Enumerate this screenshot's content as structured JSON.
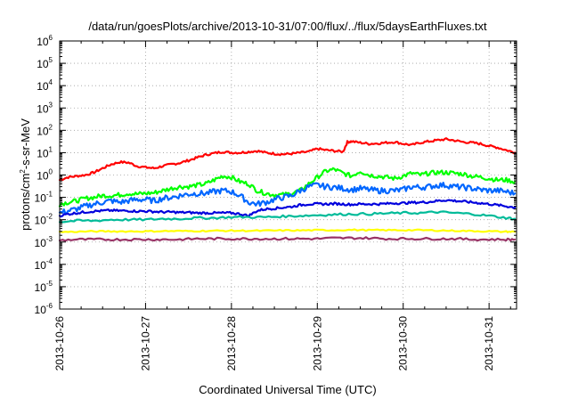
{
  "chart_data": {
    "type": "line",
    "title": "/data/run/goesPlots/archive/2013-10-31/07:00/flux/../flux/5daysEarthFluxes.txt",
    "xlabel": "Coordinated Universal Time (UTC)",
    "ylabel": {
      "base": "protons/cm",
      "sup": "2",
      "rest": "-s-sr-MeV"
    },
    "yscale": "log",
    "ylim": [
      1e-06,
      1000000.0
    ],
    "xlim": [
      0,
      5.32
    ],
    "grid": true,
    "legend": "none",
    "x_ticks": [
      {
        "value": 0,
        "label": "2013-10-26"
      },
      {
        "value": 1,
        "label": "2013-10-27"
      },
      {
        "value": 2,
        "label": "2013-10-28"
      },
      {
        "value": 3,
        "label": "2013-10-29"
      },
      {
        "value": 4,
        "label": "2013-10-30"
      },
      {
        "value": 5,
        "label": "2013-10-31"
      }
    ],
    "y_ticks": [
      {
        "value": -6,
        "base": "10",
        "exp": "-6"
      },
      {
        "value": -5,
        "base": "10",
        "exp": "-5"
      },
      {
        "value": -4,
        "base": "10",
        "exp": "-4"
      },
      {
        "value": -3,
        "base": "10",
        "exp": "-3"
      },
      {
        "value": -2,
        "base": "10",
        "exp": "-2"
      },
      {
        "value": -1,
        "base": "10",
        "exp": "-1"
      },
      {
        "value": 0,
        "base": "10",
        "exp": "0"
      },
      {
        "value": 1,
        "base": "10",
        "exp": "1"
      },
      {
        "value": 2,
        "base": "10",
        "exp": "2"
      },
      {
        "value": 3,
        "base": "10",
        "exp": "3"
      },
      {
        "value": 4,
        "base": "10",
        "exp": "4"
      },
      {
        "value": 5,
        "base": "10",
        "exp": "5"
      },
      {
        "value": 6,
        "base": "10",
        "exp": "6"
      }
    ],
    "series": [
      {
        "color": "#ff0000",
        "x": [
          0,
          0.1,
          0.2,
          0.3,
          0.4,
          0.5,
          0.6,
          0.7,
          0.8,
          0.9,
          1.0,
          1.1,
          1.2,
          1.3,
          1.4,
          1.5,
          1.6,
          1.7,
          1.8,
          1.9,
          2.0,
          2.1,
          2.2,
          2.3,
          2.4,
          2.5,
          2.6,
          2.7,
          2.8,
          2.9,
          3.0,
          3.1,
          3.2,
          3.3,
          3.35,
          3.4,
          3.5,
          3.6,
          3.7,
          3.8,
          3.9,
          4.0,
          4.1,
          4.2,
          4.3,
          4.4,
          4.5,
          4.6,
          4.7,
          4.8,
          4.9,
          5.0,
          5.1,
          5.2,
          5.3
        ],
        "y": [
          0.6,
          0.8,
          0.9,
          1.0,
          1.3,
          2.0,
          3.0,
          3.8,
          3.6,
          2.5,
          2.2,
          2.0,
          2.5,
          3.0,
          3.5,
          4.5,
          6.0,
          8.0,
          9.5,
          11,
          10,
          10,
          11,
          12,
          10,
          9,
          8.5,
          9,
          10,
          11,
          15,
          13,
          12,
          11,
          30,
          32,
          28,
          25,
          26,
          28,
          30,
          25,
          22,
          28,
          32,
          36,
          40,
          35,
          30,
          28,
          25,
          20,
          17,
          13,
          10
        ]
      },
      {
        "color": "#00ff00",
        "x": [
          0,
          0.1,
          0.2,
          0.3,
          0.4,
          0.5,
          0.6,
          0.7,
          0.8,
          0.9,
          1.0,
          1.1,
          1.2,
          1.3,
          1.4,
          1.5,
          1.6,
          1.7,
          1.8,
          1.9,
          2.0,
          2.1,
          2.2,
          2.3,
          2.4,
          2.5,
          2.6,
          2.7,
          2.8,
          2.9,
          3.0,
          3.1,
          3.2,
          3.3,
          3.4,
          3.5,
          3.6,
          3.7,
          3.8,
          3.9,
          4.0,
          4.1,
          4.2,
          4.3,
          4.4,
          4.5,
          4.6,
          4.7,
          4.8,
          4.9,
          5.0,
          5.1,
          5.2,
          5.3
        ],
        "y": [
          0.05,
          0.06,
          0.07,
          0.09,
          0.1,
          0.12,
          0.12,
          0.13,
          0.15,
          0.14,
          0.15,
          0.16,
          0.2,
          0.25,
          0.3,
          0.3,
          0.35,
          0.4,
          0.6,
          0.9,
          0.8,
          0.5,
          0.4,
          0.2,
          0.15,
          0.13,
          0.13,
          0.15,
          0.2,
          0.4,
          0.8,
          1.5,
          1.8,
          1.2,
          0.9,
          1.5,
          1.0,
          0.9,
          0.8,
          0.7,
          0.9,
          1.2,
          1.0,
          1.2,
          1.3,
          1.3,
          1.2,
          1.1,
          0.9,
          0.8,
          0.7,
          0.6,
          0.6,
          0.5
        ]
      },
      {
        "color": "#0066ff",
        "x": [
          0,
          0.1,
          0.2,
          0.3,
          0.4,
          0.5,
          0.6,
          0.7,
          0.8,
          0.9,
          1.0,
          1.1,
          1.2,
          1.3,
          1.4,
          1.5,
          1.6,
          1.7,
          1.8,
          1.9,
          2.0,
          2.1,
          2.2,
          2.3,
          2.4,
          2.5,
          2.6,
          2.7,
          2.8,
          2.9,
          3.0,
          3.1,
          3.2,
          3.3,
          3.4,
          3.5,
          3.6,
          3.7,
          3.8,
          3.9,
          4.0,
          4.1,
          4.2,
          4.3,
          4.4,
          4.5,
          4.6,
          4.7,
          4.8,
          4.9,
          5.0,
          5.1,
          5.2,
          5.3
        ],
        "y": [
          0.02,
          0.025,
          0.03,
          0.04,
          0.05,
          0.06,
          0.07,
          0.06,
          0.07,
          0.08,
          0.08,
          0.07,
          0.09,
          0.1,
          0.12,
          0.14,
          0.15,
          0.15,
          0.18,
          0.2,
          0.18,
          0.12,
          0.06,
          0.05,
          0.06,
          0.08,
          0.1,
          0.12,
          0.2,
          0.3,
          0.35,
          0.3,
          0.28,
          0.25,
          0.22,
          0.25,
          0.22,
          0.2,
          0.2,
          0.2,
          0.22,
          0.3,
          0.28,
          0.3,
          0.35,
          0.35,
          0.3,
          0.28,
          0.25,
          0.22,
          0.2,
          0.2,
          0.18,
          0.15
        ]
      },
      {
        "color": "#0000dd",
        "x": [
          0,
          0.1,
          0.2,
          0.3,
          0.4,
          0.5,
          0.6,
          0.7,
          0.8,
          0.9,
          1.0,
          1.1,
          1.2,
          1.3,
          1.4,
          1.5,
          1.6,
          1.7,
          1.8,
          1.9,
          2.0,
          2.1,
          2.2,
          2.3,
          2.4,
          2.5,
          2.6,
          2.7,
          2.8,
          2.9,
          3.0,
          3.1,
          3.2,
          3.3,
          3.4,
          3.5,
          3.6,
          3.7,
          3.8,
          3.9,
          4.0,
          4.1,
          4.2,
          4.3,
          4.4,
          4.5,
          4.6,
          4.7,
          4.8,
          4.9,
          5.0,
          5.1,
          5.2,
          5.3
        ],
        "y": [
          0.015,
          0.018,
          0.02,
          0.022,
          0.024,
          0.025,
          0.026,
          0.025,
          0.025,
          0.024,
          0.024,
          0.023,
          0.022,
          0.022,
          0.021,
          0.021,
          0.02,
          0.02,
          0.02,
          0.02,
          0.02,
          0.018,
          0.015,
          0.025,
          0.03,
          0.032,
          0.035,
          0.038,
          0.045,
          0.05,
          0.05,
          0.05,
          0.052,
          0.05,
          0.048,
          0.05,
          0.05,
          0.05,
          0.052,
          0.055,
          0.055,
          0.058,
          0.06,
          0.062,
          0.07,
          0.075,
          0.07,
          0.065,
          0.06,
          0.055,
          0.05,
          0.045,
          0.04,
          0.035
        ]
      },
      {
        "color": "#00bb99",
        "x": [
          0,
          0.2,
          0.4,
          0.6,
          0.8,
          1.0,
          1.2,
          1.4,
          1.6,
          1.8,
          2.0,
          2.2,
          2.4,
          2.6,
          2.8,
          3.0,
          3.2,
          3.4,
          3.6,
          3.8,
          4.0,
          4.2,
          4.4,
          4.6,
          4.8,
          5.0,
          5.2,
          5.3
        ],
        "y": [
          0.008,
          0.009,
          0.009,
          0.01,
          0.01,
          0.01,
          0.011,
          0.011,
          0.012,
          0.012,
          0.013,
          0.013,
          0.013,
          0.014,
          0.015,
          0.016,
          0.017,
          0.018,
          0.018,
          0.019,
          0.02,
          0.02,
          0.022,
          0.02,
          0.018,
          0.015,
          0.012,
          0.011
        ]
      },
      {
        "color": "#ffff00",
        "x": [
          0,
          0.2,
          0.4,
          0.6,
          0.8,
          1.0,
          1.2,
          1.4,
          1.6,
          1.8,
          2.0,
          2.2,
          2.4,
          2.6,
          2.8,
          3.0,
          3.2,
          3.4,
          3.6,
          3.8,
          4.0,
          4.2,
          4.4,
          4.6,
          4.8,
          5.0,
          5.2,
          5.3
        ],
        "y": [
          0.0028,
          0.0029,
          0.003,
          0.003,
          0.003,
          0.003,
          0.0031,
          0.0031,
          0.0031,
          0.0032,
          0.0032,
          0.0032,
          0.0032,
          0.0033,
          0.0033,
          0.0034,
          0.0034,
          0.0035,
          0.0034,
          0.0034,
          0.0034,
          0.0034,
          0.0033,
          0.0032,
          0.0031,
          0.003,
          0.0029,
          0.0029
        ]
      },
      {
        "color": "#993366",
        "x": [
          0,
          0.2,
          0.4,
          0.6,
          0.8,
          1.0,
          1.2,
          1.4,
          1.6,
          1.8,
          2.0,
          2.2,
          2.4,
          2.6,
          2.8,
          3.0,
          3.2,
          3.4,
          3.6,
          3.8,
          4.0,
          4.2,
          4.4,
          4.6,
          4.8,
          5.0,
          5.2,
          5.3
        ],
        "y": [
          0.0012,
          0.0013,
          0.0013,
          0.0013,
          0.0013,
          0.0013,
          0.0013,
          0.0013,
          0.0014,
          0.0014,
          0.0014,
          0.0014,
          0.0014,
          0.0014,
          0.0014,
          0.0014,
          0.0015,
          0.0015,
          0.0015,
          0.0014,
          0.0014,
          0.0014,
          0.0014,
          0.0014,
          0.0013,
          0.0013,
          0.0013,
          0.0013
        ]
      }
    ]
  }
}
